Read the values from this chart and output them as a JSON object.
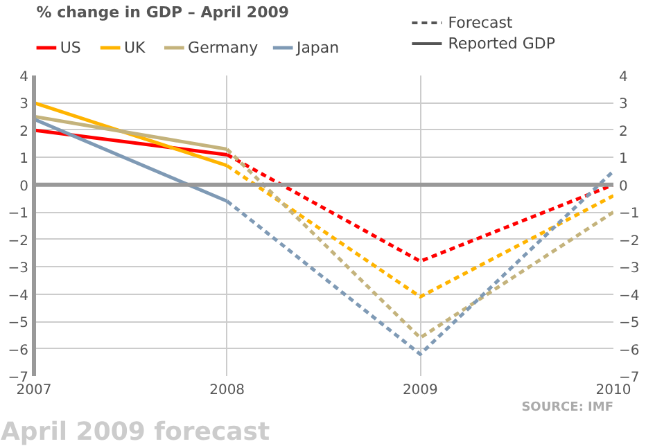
{
  "chart_data": {
    "type": "line",
    "title": "% change in GDP – April 2009",
    "xlim": [
      2007,
      2010
    ],
    "xticks": [
      2007,
      2008,
      2009,
      2010
    ],
    "ylim": [
      -7,
      4
    ],
    "yticks": [
      -7,
      -6,
      -5,
      -4,
      -3,
      -2,
      -1,
      0,
      1,
      2,
      3,
      4
    ],
    "y2lim": [
      -7,
      4
    ],
    "y2ticks": [
      -7,
      -6,
      -5,
      -4,
      -3,
      -2,
      -1,
      0,
      1,
      2,
      3,
      4
    ],
    "grid": true,
    "legend": "top",
    "ref_lines": [
      {
        "axis": "y",
        "value": 0,
        "color": "#999999"
      }
    ],
    "series": [
      {
        "name": "US",
        "color": "#ff0000",
        "x": [
          2007,
          2008
        ],
        "values": [
          2.0,
          1.1
        ],
        "line_style": "solid"
      },
      {
        "name": "UK",
        "color": "#ffb400",
        "x": [
          2007,
          2008
        ],
        "values": [
          3.0,
          0.7
        ],
        "line_style": "solid"
      },
      {
        "name": "Germany",
        "color": "#c4b37c",
        "x": [
          2007,
          2008
        ],
        "values": [
          2.5,
          1.3
        ],
        "line_style": "solid"
      },
      {
        "name": "Japan",
        "color": "#7f9ab5",
        "x": [
          2007,
          2008
        ],
        "values": [
          2.4,
          -0.6
        ],
        "line_style": "solid"
      },
      {
        "color": "#ff0000",
        "x": [
          2008,
          2009,
          2010
        ],
        "values": [
          1.1,
          -2.8,
          0.0
        ],
        "line_style": "dashed"
      },
      {
        "color": "#ffb400",
        "x": [
          2008,
          2009,
          2010
        ],
        "values": [
          0.7,
          -4.1,
          -0.4
        ],
        "line_style": "dashed"
      },
      {
        "color": "#c4b37c",
        "x": [
          2008,
          2009,
          2010
        ],
        "values": [
          1.3,
          -5.6,
          -1.0
        ],
        "line_style": "dashed"
      },
      {
        "color": "#7f9ab5",
        "x": [
          2008,
          2009,
          2010
        ],
        "values": [
          -0.6,
          -6.2,
          0.5
        ],
        "line_style": "dashed"
      }
    ],
    "annotations": [
      "Forecast",
      "Reported GDP",
      "SOURCE: IMF",
      "April 2009 forecast"
    ]
  }
}
